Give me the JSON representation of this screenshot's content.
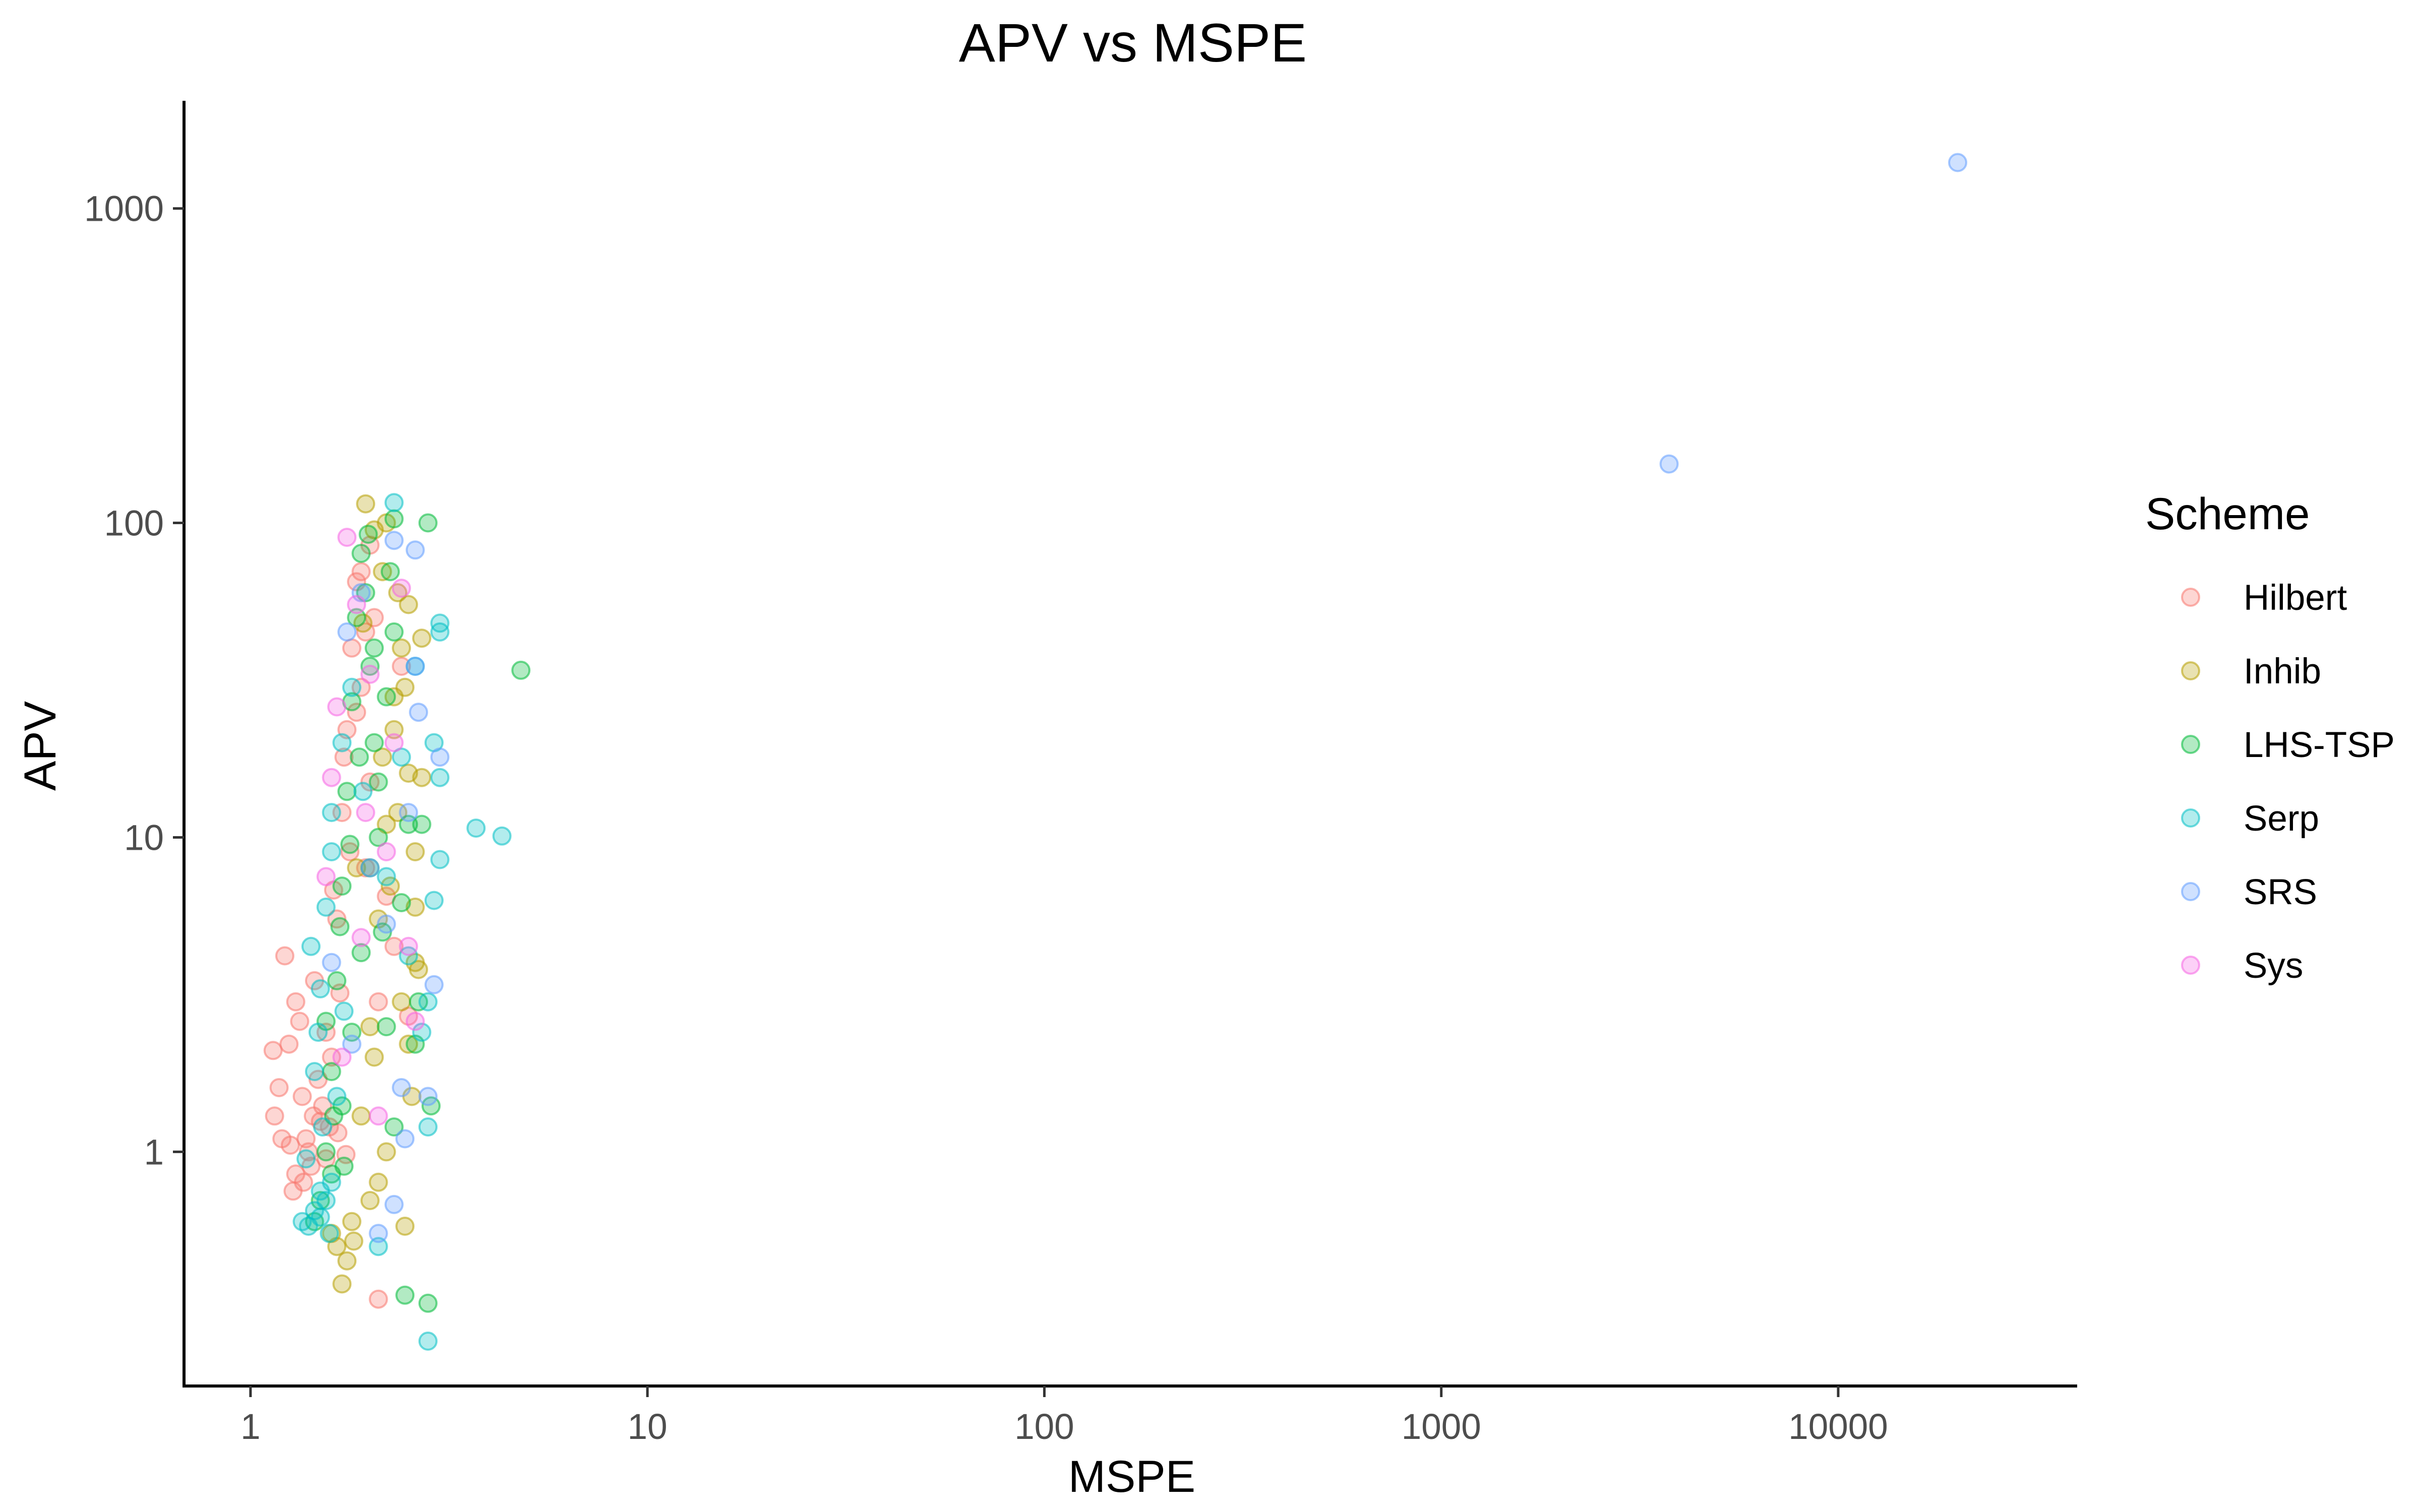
{
  "chart_data": {
    "type": "scatter",
    "title": "APV vs MSPE",
    "xlabel": "MSPE",
    "ylabel": "APV",
    "x_scale": "log10",
    "y_scale": "log10",
    "xlim": [
      0.68,
      40000
    ],
    "ylim": [
      0.18,
      2200
    ],
    "x_ticks": [
      {
        "value": 1,
        "label": "1"
      },
      {
        "value": 10,
        "label": "10"
      },
      {
        "value": 100,
        "label": "100"
      },
      {
        "value": 1000,
        "label": "1000"
      },
      {
        "value": 10000,
        "label": "10000"
      }
    ],
    "y_ticks": [
      {
        "value": 1,
        "label": "1"
      },
      {
        "value": 10,
        "label": "10"
      },
      {
        "value": 100,
        "label": "100"
      },
      {
        "value": 1000,
        "label": "1000"
      }
    ],
    "grid": false,
    "legend": {
      "title": "Scheme",
      "position": "right"
    },
    "point_alpha": 0.3,
    "series": [
      {
        "name": "Hilbert",
        "color": "#F8766D",
        "points": [
          [
            1.15,
            1.3
          ],
          [
            1.2,
            1.1
          ],
          [
            1.25,
            2.2
          ],
          [
            1.3,
            0.85
          ],
          [
            1.35,
            1.5
          ],
          [
            1.4,
            1.0
          ],
          [
            1.45,
            3.5
          ],
          [
            1.5,
            1.25
          ],
          [
            1.55,
            0.95
          ],
          [
            1.6,
            2.0
          ],
          [
            1.65,
            5.5
          ],
          [
            1.7,
            12
          ],
          [
            1.75,
            22
          ],
          [
            1.8,
            40
          ],
          [
            1.85,
            65
          ],
          [
            1.9,
            30
          ],
          [
            1.95,
            8
          ],
          [
            2.0,
            15
          ],
          [
            2.05,
            50
          ],
          [
            2.1,
            3.0
          ],
          [
            2.2,
            6.5
          ],
          [
            1.22,
            4.2
          ],
          [
            1.28,
            0.75
          ],
          [
            1.38,
            1.1
          ],
          [
            1.42,
            0.9
          ],
          [
            1.33,
            2.6
          ],
          [
            1.48,
            1.7
          ],
          [
            1.58,
            1.2
          ],
          [
            1.68,
            3.2
          ],
          [
            1.78,
            9
          ],
          [
            2.1,
            0.34
          ],
          [
            2.3,
            4.5
          ],
          [
            2.5,
            2.7
          ],
          [
            1.9,
            70
          ],
          [
            2.0,
            85
          ],
          [
            1.72,
            18
          ],
          [
            1.62,
            6.8
          ],
          [
            1.52,
            1.4
          ],
          [
            1.18,
            1.6
          ],
          [
            1.26,
            1.05
          ],
          [
            1.36,
            0.8
          ],
          [
            1.44,
            1.3
          ],
          [
            1.55,
            2.4
          ],
          [
            1.85,
            25
          ],
          [
            2.4,
            35
          ],
          [
            1.95,
            45
          ],
          [
            1.66,
            1.15
          ],
          [
            1.74,
            0.98
          ],
          [
            1.14,
            2.1
          ],
          [
            1.3,
            3.0
          ]
        ]
      },
      {
        "name": "Inhib",
        "color": "#B79F00",
        "points": [
          [
            1.6,
            0.55
          ],
          [
            1.7,
            0.38
          ],
          [
            1.75,
            0.45
          ],
          [
            1.8,
            0.6
          ],
          [
            1.9,
            1.3
          ],
          [
            2.0,
            2.5
          ],
          [
            2.1,
            5.5
          ],
          [
            2.2,
            11
          ],
          [
            2.3,
            22
          ],
          [
            2.4,
            40
          ],
          [
            2.5,
            16
          ],
          [
            2.6,
            9
          ],
          [
            2.7,
            43
          ],
          [
            2.6,
            4.0
          ],
          [
            2.5,
            2.2
          ],
          [
            1.95,
            115
          ],
          [
            2.05,
            95
          ],
          [
            2.15,
            70
          ],
          [
            2.35,
            60
          ],
          [
            2.45,
            30
          ],
          [
            1.85,
            8
          ],
          [
            2.0,
            0.7
          ],
          [
            2.45,
            0.58
          ],
          [
            2.2,
            1.0
          ],
          [
            2.55,
            1.5
          ],
          [
            2.4,
            3.0
          ],
          [
            2.6,
            6.0
          ],
          [
            2.7,
            15.5
          ],
          [
            2.3,
            28
          ],
          [
            2.15,
            18
          ],
          [
            1.65,
            0.5
          ],
          [
            1.82,
            0.52
          ],
          [
            2.05,
            2.0
          ],
          [
            2.25,
            7
          ],
          [
            2.1,
            0.8
          ],
          [
            1.92,
            48
          ],
          [
            2.35,
            12
          ],
          [
            2.65,
            3.8
          ],
          [
            2.5,
            55
          ],
          [
            2.2,
            100
          ]
        ]
      },
      {
        "name": "LHS-TSP",
        "color": "#00BA38",
        "points": [
          [
            1.5,
            0.7
          ],
          [
            1.55,
            1.0
          ],
          [
            1.6,
            1.8
          ],
          [
            1.65,
            3.5
          ],
          [
            1.7,
            7
          ],
          [
            1.75,
            14
          ],
          [
            1.8,
            27
          ],
          [
            1.85,
            50
          ],
          [
            1.9,
            80
          ],
          [
            1.95,
            60
          ],
          [
            2.0,
            35
          ],
          [
            2.05,
            20
          ],
          [
            2.1,
            10
          ],
          [
            2.15,
            5
          ],
          [
            2.2,
            2.5
          ],
          [
            2.3,
            1.2
          ],
          [
            2.8,
            100
          ],
          [
            2.3,
            103
          ],
          [
            4.8,
            34
          ],
          [
            2.85,
            1.4
          ],
          [
            2.8,
            0.33
          ],
          [
            2.45,
            0.35
          ],
          [
            1.45,
            0.6
          ],
          [
            1.6,
            0.85
          ],
          [
            1.7,
            1.4
          ],
          [
            1.8,
            2.4
          ],
          [
            1.9,
            4.3
          ],
          [
            2.0,
            8
          ],
          [
            2.1,
            15
          ],
          [
            2.2,
            28
          ],
          [
            2.3,
            45
          ],
          [
            2.5,
            11
          ],
          [
            2.7,
            11
          ],
          [
            2.6,
            2.2
          ],
          [
            1.55,
            2.6
          ],
          [
            1.68,
            5.2
          ],
          [
            1.78,
            9.5
          ],
          [
            1.88,
            18
          ],
          [
            2.05,
            40
          ],
          [
            2.25,
            70
          ],
          [
            1.62,
            1.3
          ],
          [
            1.72,
            0.9
          ],
          [
            2.4,
            6.2
          ],
          [
            2.65,
            3.0
          ],
          [
            1.98,
            92
          ]
        ]
      },
      {
        "name": "Serp",
        "color": "#00BFC4",
        "points": [
          [
            1.35,
            0.6
          ],
          [
            1.4,
            0.58
          ],
          [
            1.45,
            0.65
          ],
          [
            1.5,
            0.62
          ],
          [
            1.55,
            0.7
          ],
          [
            1.6,
            0.8
          ],
          [
            1.45,
            1.8
          ],
          [
            1.5,
            3.3
          ],
          [
            1.55,
            6
          ],
          [
            1.6,
            12
          ],
          [
            1.7,
            20
          ],
          [
            1.8,
            30
          ],
          [
            2.3,
            116
          ],
          [
            3.0,
            45
          ],
          [
            3.0,
            48
          ],
          [
            3.7,
            10.7
          ],
          [
            4.3,
            10.1
          ],
          [
            2.8,
            0.25
          ],
          [
            2.1,
            0.5
          ],
          [
            2.8,
            1.2
          ],
          [
            3.0,
            8.5
          ],
          [
            2.9,
            6.3
          ],
          [
            2.8,
            3.0
          ],
          [
            3.0,
            15.5
          ],
          [
            2.9,
            20
          ],
          [
            2.7,
            2.4
          ],
          [
            1.42,
            4.5
          ],
          [
            1.48,
            2.4
          ],
          [
            1.52,
            1.2
          ],
          [
            1.38,
            0.95
          ],
          [
            1.6,
            9
          ],
          [
            1.65,
            1.5
          ],
          [
            1.72,
            2.8
          ],
          [
            2.4,
            18
          ],
          [
            2.6,
            35
          ],
          [
            2.5,
            4.2
          ],
          [
            2.2,
            7.5
          ],
          [
            1.92,
            14
          ],
          [
            1.5,
            0.75
          ],
          [
            1.58,
            0.55
          ]
        ]
      },
      {
        "name": "SRS",
        "color": "#619CFF",
        "points": [
          [
            3750,
            154
          ],
          [
            20000,
            1400
          ],
          [
            2.6,
            82
          ],
          [
            2.3,
            88
          ],
          [
            2.65,
            25
          ],
          [
            3.0,
            18
          ],
          [
            2.9,
            3.4
          ],
          [
            2.1,
            0.55
          ],
          [
            2.3,
            0.68
          ],
          [
            2.4,
            1.6
          ],
          [
            2.6,
            35
          ],
          [
            1.9,
            60
          ],
          [
            2.0,
            8
          ],
          [
            1.75,
            45
          ],
          [
            2.5,
            12
          ],
          [
            2.8,
            1.5
          ],
          [
            1.6,
            4
          ],
          [
            1.8,
            2.2
          ],
          [
            2.2,
            5.3
          ],
          [
            2.45,
            1.1
          ]
        ]
      },
      {
        "name": "Sys",
        "color": "#F564E3",
        "points": [
          [
            1.6,
            15.5
          ],
          [
            1.75,
            90
          ],
          [
            2.4,
            62
          ],
          [
            2.6,
            2.6
          ],
          [
            1.9,
            4.8
          ],
          [
            1.65,
            26
          ],
          [
            1.7,
            2.0
          ],
          [
            2.2,
            9
          ],
          [
            2.0,
            33
          ],
          [
            1.55,
            7.5
          ],
          [
            2.5,
            4.5
          ],
          [
            1.85,
            55
          ],
          [
            2.3,
            20
          ],
          [
            2.1,
            1.3
          ],
          [
            1.95,
            12
          ]
        ]
      }
    ]
  }
}
